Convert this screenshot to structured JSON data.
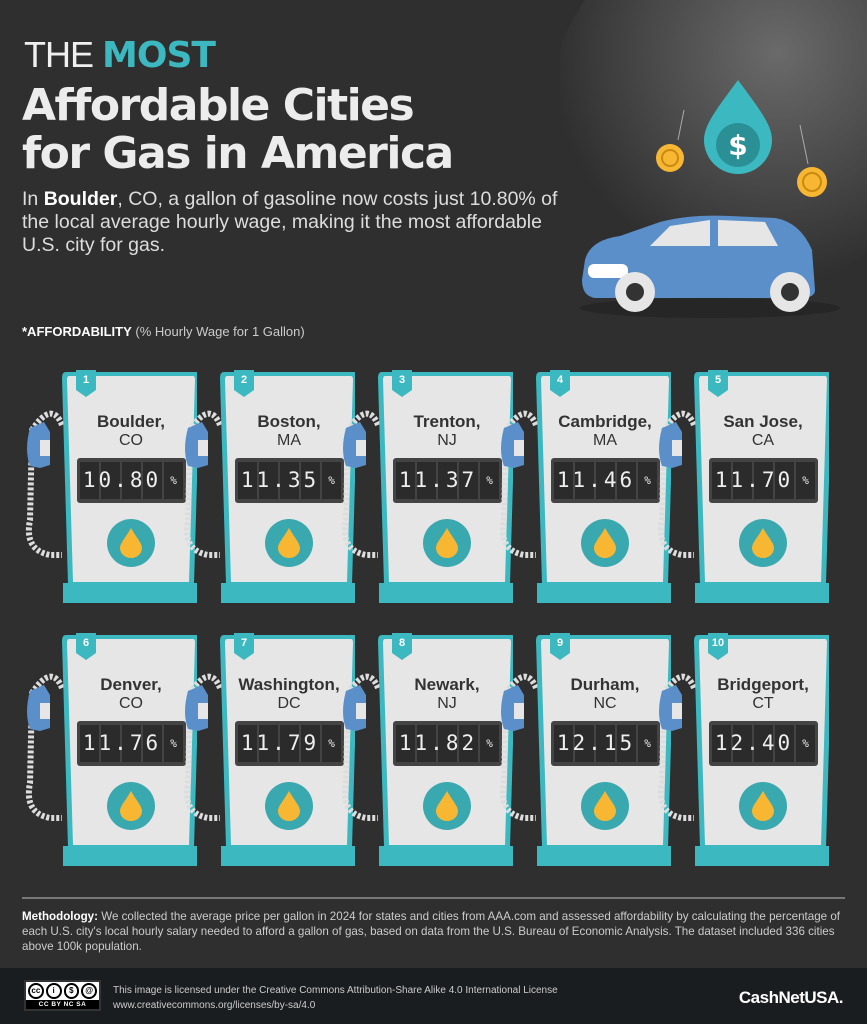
{
  "header": {
    "title_the": "THE",
    "title_most": "MOST",
    "title_line2": "Affordable Cities",
    "title_line3": "for Gas in America",
    "intro_prefix": "In ",
    "intro_city": "Boulder",
    "intro_rest": ", CO, a gallon of gasoline now costs just 10.80% of the local average hourly wage, making it the most affordable U.S. city for gas.",
    "note_bold": "*AFFORDABILITY",
    "note_rest": " (% Hourly Wage for 1 Gallon)"
  },
  "colors": {
    "accent": "#3cb9c0",
    "pump_fill": "#e6e6e6",
    "nozzle": "#5a8fc9",
    "fuel_drop": "#f7b733",
    "background": "#2f2f2f"
  },
  "ranking": [
    {
      "rank": "1",
      "city": "Boulder,",
      "state": "CO",
      "value": "10.80",
      "unit": "%"
    },
    {
      "rank": "2",
      "city": "Boston,",
      "state": "MA",
      "value": "11.35",
      "unit": "%"
    },
    {
      "rank": "3",
      "city": "Trenton,",
      "state": "NJ",
      "value": "11.37",
      "unit": "%"
    },
    {
      "rank": "4",
      "city": "Cambridge,",
      "state": "MA",
      "value": "11.46",
      "unit": "%"
    },
    {
      "rank": "5",
      "city": "San Jose,",
      "state": "CA",
      "value": "11.70",
      "unit": "%"
    },
    {
      "rank": "6",
      "city": "Denver,",
      "state": "CO",
      "value": "11.76",
      "unit": "%"
    },
    {
      "rank": "7",
      "city": "Washington,",
      "state": "DC",
      "value": "11.79",
      "unit": "%"
    },
    {
      "rank": "8",
      "city": "Newark,",
      "state": "NJ",
      "value": "11.82",
      "unit": "%"
    },
    {
      "rank": "9",
      "city": "Durham,",
      "state": "NC",
      "value": "12.15",
      "unit": "%"
    },
    {
      "rank": "10",
      "city": "Bridgeport,",
      "state": "CT",
      "value": "12.40",
      "unit": "%"
    }
  ],
  "methodology": {
    "label": "Methodology:",
    "text": " We collected the average price per gallon in 2024 for states and cities from AAA.com and assessed affordability by calculating the percentage of each U.S. city's local hourly salary needed to afford a gallon of gas, based on data from the U.S. Bureau of Economic Analysis. The dataset included 336 cities above 100k population."
  },
  "footer": {
    "license_line1": "This image is licensed under the Creative Commons Attribution-Share Alike 4.0 International License",
    "license_line2": "www.creativecommons.org/licenses/by-sa/4.0",
    "cc_badge": "CC BY NC SA",
    "brand": "CashNetUSA."
  }
}
